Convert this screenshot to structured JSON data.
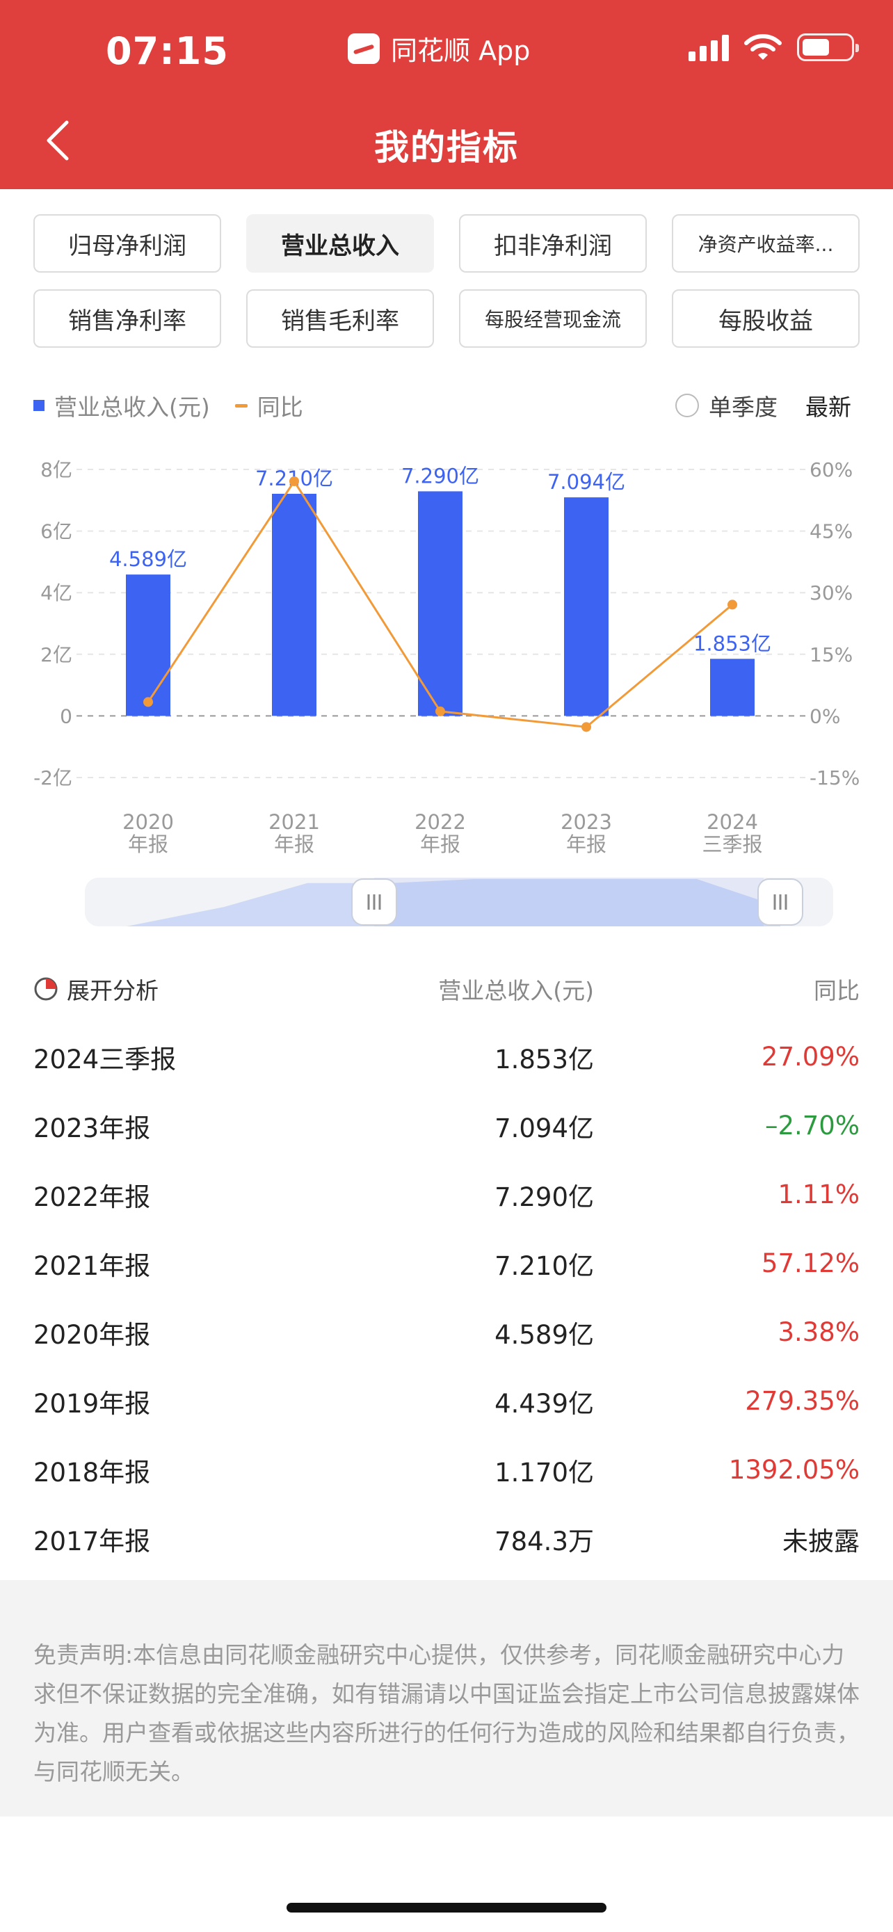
{
  "status_bar": {
    "time": "07:15",
    "app_name": "同花顺 App"
  },
  "nav": {
    "title": "我的指标",
    "back_icon": "chevron-left-icon"
  },
  "tabs": [
    {
      "label": "归母净利润",
      "active": false
    },
    {
      "label": "营业总收入",
      "active": true
    },
    {
      "label": "扣非净利润",
      "active": false
    },
    {
      "label": "净资产收益率...",
      "active": false
    },
    {
      "label": "销售净利率",
      "active": false
    },
    {
      "label": "销售毛利率",
      "active": false
    },
    {
      "label": "每股经营现金流",
      "active": false
    },
    {
      "label": "每股收益",
      "active": false
    }
  ],
  "legend": {
    "bar_label": "营业总收入(元)",
    "line_label": "同比",
    "single_quarter": "单季度",
    "latest": "最新"
  },
  "colors": {
    "brand": "#e0403d",
    "bar": "#3d63f2",
    "line": "#f29a38",
    "positive": "#e03a36",
    "negative": "#2c9b3f"
  },
  "chart_data": {
    "type": "bar",
    "categories": [
      [
        "2020",
        "年报"
      ],
      [
        "2021",
        "年报"
      ],
      [
        "2022",
        "年报"
      ],
      [
        "2023",
        "年报"
      ],
      [
        "2024",
        "三季报"
      ]
    ],
    "series": [
      {
        "name": "营业总收入(元)",
        "type": "bar",
        "axis": "left",
        "values": [
          4.589,
          7.21,
          7.29,
          7.094,
          1.853
        ],
        "labels": [
          "4.589亿",
          "7.210亿",
          "7.290亿",
          "7.094亿",
          "1.853亿"
        ]
      },
      {
        "name": "同比",
        "type": "line",
        "axis": "right",
        "values": [
          3.38,
          57.12,
          1.11,
          -2.7,
          27.09
        ]
      }
    ],
    "y_left": {
      "min": -2,
      "max": 8,
      "ticks": [
        "8亿",
        "6亿",
        "4亿",
        "2亿",
        "0",
        "-2亿"
      ]
    },
    "y_right": {
      "min": -15,
      "max": 60,
      "ticks": [
        "60%",
        "45%",
        "30%",
        "15%",
        "0%",
        "-15%"
      ]
    },
    "grid": true
  },
  "slider": {
    "area_values": [
      0,
      3.4,
      7.6,
      7.6,
      8.3,
      8.3,
      8.3,
      3.4
    ]
  },
  "table": {
    "expand_label": "展开分析",
    "col_revenue": "营业总收入(元)",
    "col_yoy": "同比",
    "rows": [
      {
        "period": "2024三季报",
        "revenue": "1.853亿",
        "yoy": "27.09%",
        "tone": "pos"
      },
      {
        "period": "2023年报",
        "revenue": "7.094亿",
        "yoy": "–2.70%",
        "tone": "neg"
      },
      {
        "period": "2022年报",
        "revenue": "7.290亿",
        "yoy": "1.11%",
        "tone": "pos"
      },
      {
        "period": "2021年报",
        "revenue": "7.210亿",
        "yoy": "57.12%",
        "tone": "pos"
      },
      {
        "period": "2020年报",
        "revenue": "4.589亿",
        "yoy": "3.38%",
        "tone": "pos"
      },
      {
        "period": "2019年报",
        "revenue": "4.439亿",
        "yoy": "279.35%",
        "tone": "pos"
      },
      {
        "period": "2018年报",
        "revenue": "1.170亿",
        "yoy": "1392.05%",
        "tone": "pos"
      },
      {
        "period": "2017年报",
        "revenue": "784.3万",
        "yoy": "未披露",
        "tone": "na"
      }
    ]
  },
  "disclaimer": "免责声明:本信息由同花顺金融研究中心提供，仅供参考，同花顺金融研究中心力求但不保证数据的完全准确，如有错漏请以中国证监会指定上市公司信息披露媒体为准。用户查看或依据这些内容所进行的任何行为造成的风险和结果都自行负责，与同花顺无关。"
}
